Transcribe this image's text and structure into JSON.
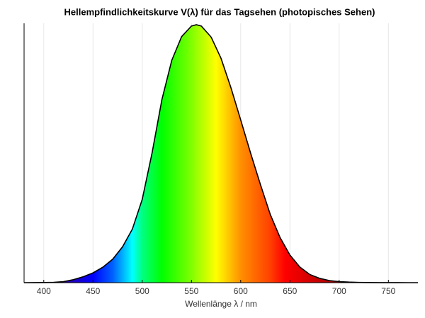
{
  "chart_data": {
    "type": "area",
    "title": "Hellempfindlichkeitskurve V(λ) für das Tagsehen (photopisches Sehen)",
    "x_label": "Wellenlänge λ / nm",
    "x": [
      380,
      390,
      400,
      410,
      420,
      430,
      440,
      450,
      460,
      470,
      480,
      490,
      500,
      510,
      520,
      530,
      540,
      550,
      555,
      560,
      570,
      580,
      590,
      600,
      610,
      620,
      630,
      640,
      650,
      660,
      670,
      680,
      690,
      700,
      710,
      720,
      730,
      740,
      750,
      760,
      770,
      780
    ],
    "values": [
      4e-05,
      0.00012,
      0.0004,
      0.0012,
      0.004,
      0.0116,
      0.023,
      0.038,
      0.06,
      0.091,
      0.139,
      0.208,
      0.323,
      0.503,
      0.71,
      0.862,
      0.954,
      0.995,
      1.0,
      0.995,
      0.952,
      0.87,
      0.757,
      0.631,
      0.503,
      0.381,
      0.265,
      0.175,
      0.107,
      0.061,
      0.032,
      0.017,
      0.0082,
      0.0041,
      0.0021,
      0.00105,
      0.00052,
      0.00025,
      0.00012,
      6e-05,
      3e-05,
      1.5e-05
    ],
    "color": "#000000",
    "xlim": [
      380,
      780
    ],
    "xticks": [
      400,
      450,
      500,
      550,
      600,
      650,
      700,
      750
    ],
    "ylim": [
      0,
      1
    ],
    "grid": true
  }
}
